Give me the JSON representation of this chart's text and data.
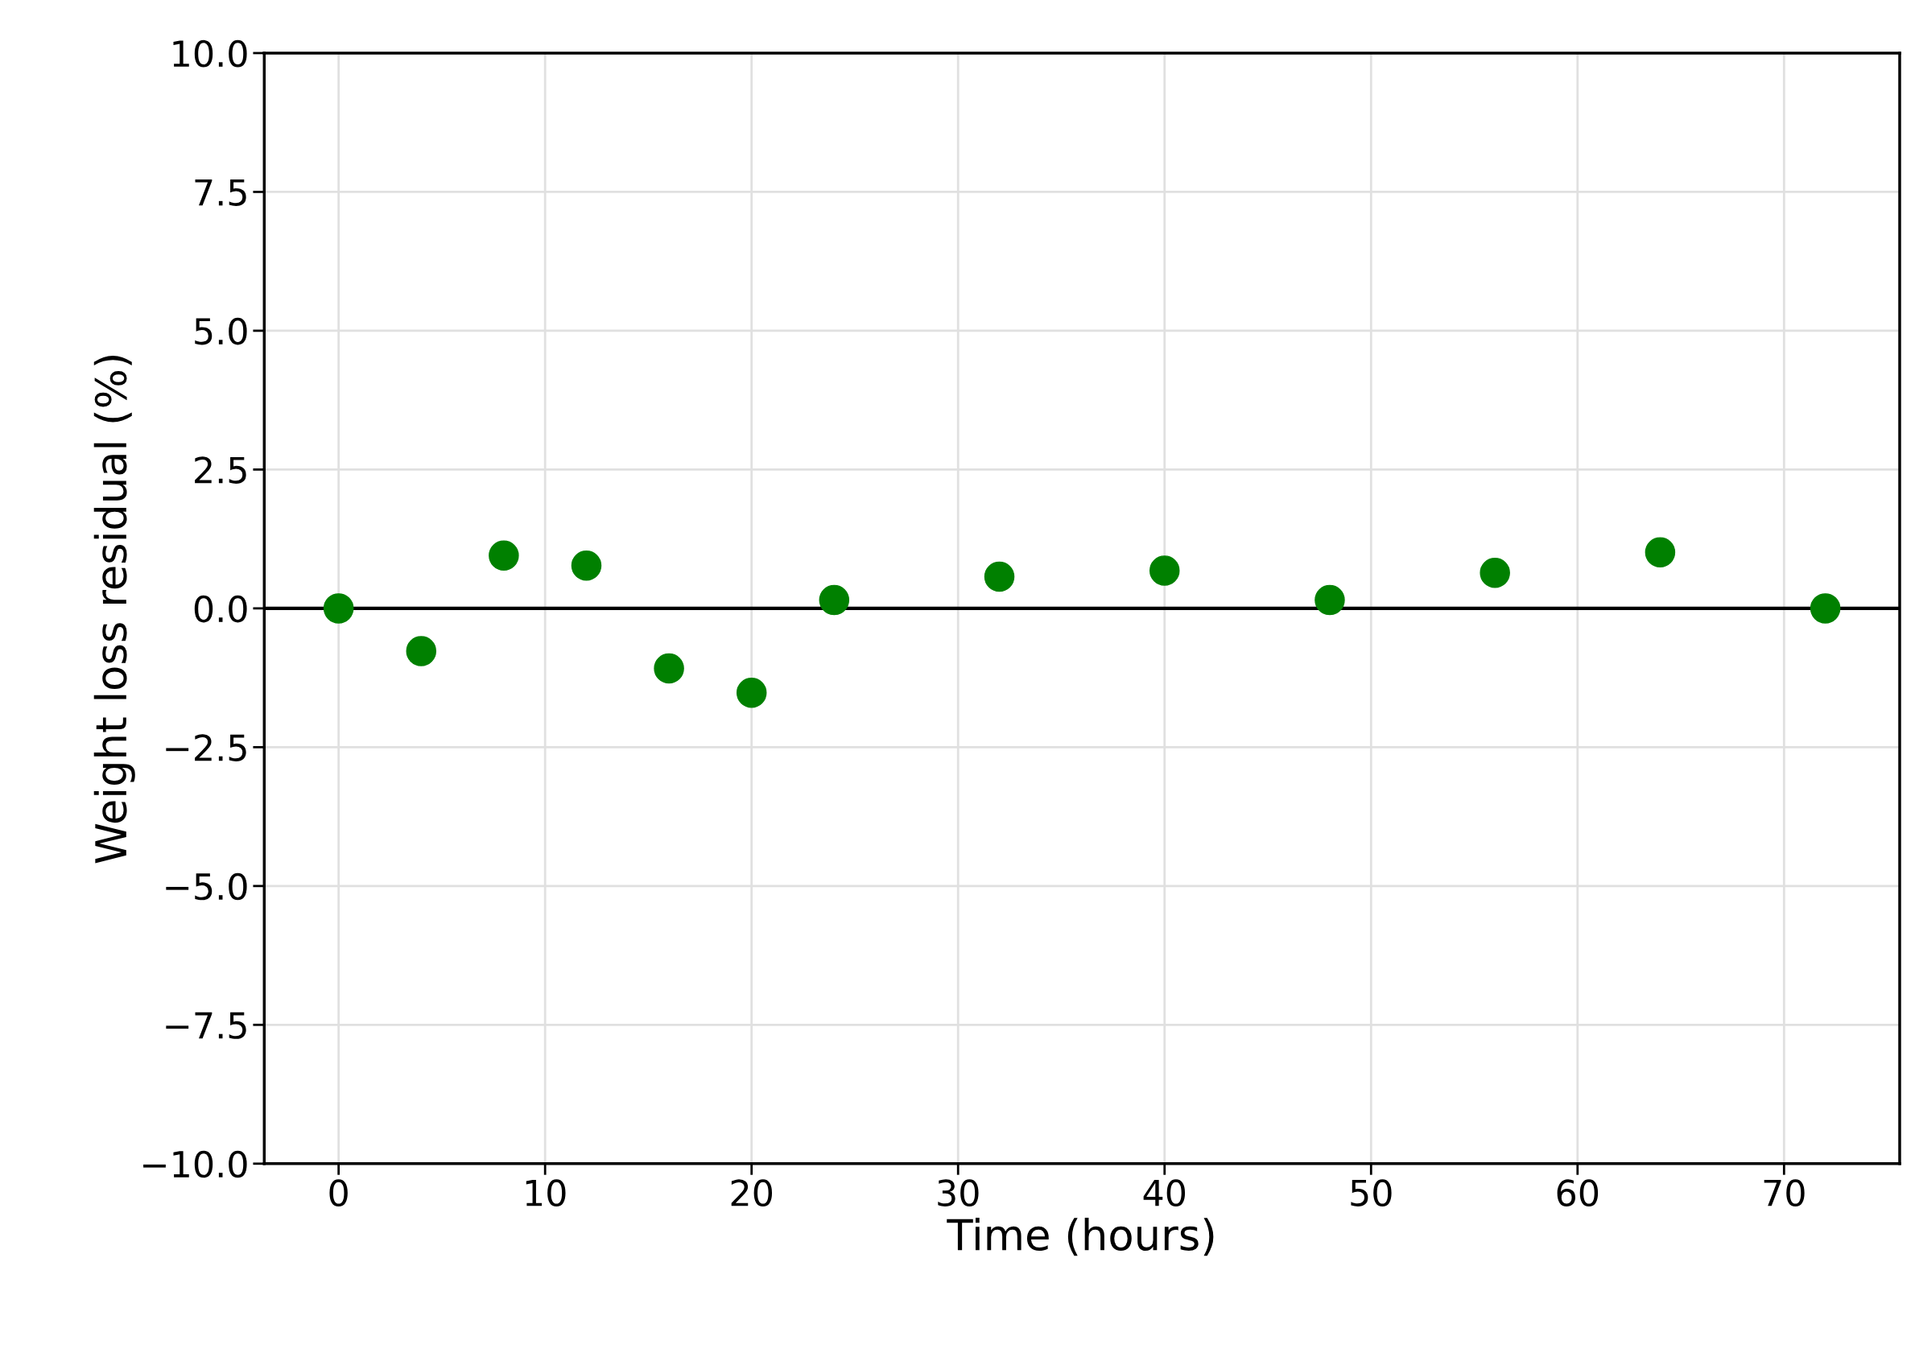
{
  "chart_data": {
    "type": "scatter",
    "xlabel": "Time (hours)",
    "ylabel": "Weight loss residual (%)",
    "x": [
      0,
      4,
      8,
      12,
      16,
      20,
      24,
      32,
      40,
      48,
      56,
      64,
      72
    ],
    "series": [
      {
        "color": "#008000",
        "values": [
          0.0,
          -0.77,
          0.95,
          0.77,
          -1.08,
          -1.52,
          0.15,
          0.57,
          0.68,
          0.15,
          0.64,
          1.01,
          0.0
        ]
      }
    ],
    "xlim": [
      -3.6,
      75.6
    ],
    "xticks": [
      0,
      10,
      20,
      30,
      40,
      50,
      60,
      70
    ],
    "ylim": [
      -10.0,
      10.0
    ],
    "yticks": [
      {
        "value": -10,
        "label": "−10.0"
      },
      {
        "value": -7.5,
        "label": "−7.5"
      },
      {
        "value": -5,
        "label": "−5.0"
      },
      {
        "value": -2.5,
        "label": "−2.5"
      },
      {
        "value": 0,
        "label": "0.0"
      },
      {
        "value": 2.5,
        "label": "2.5"
      },
      {
        "value": 5,
        "label": "5.0"
      },
      {
        "value": 7.5,
        "label": "7.5"
      },
      {
        "value": 10,
        "label": "10.0"
      }
    ],
    "ref_lines": [
      {
        "axis": "y",
        "value": 0,
        "color": "#000000",
        "line_style": "solid"
      }
    ],
    "grid": true,
    "marker": "circle",
    "legend": false
  }
}
